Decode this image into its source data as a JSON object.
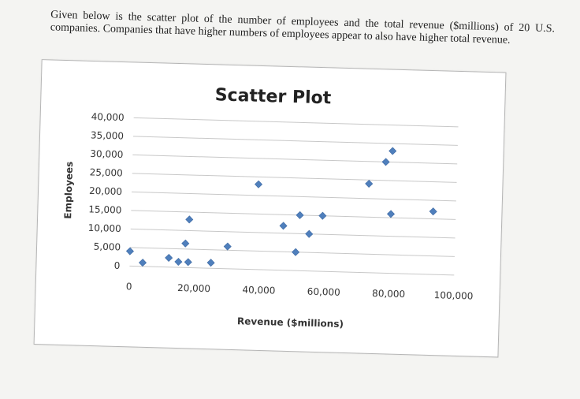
{
  "intro_text": "Given below is the scatter plot of the number of employees and the total revenue ($millions) of 20 U.S. companies. Companies that have higher numbers of employees appear to also have higher total revenue.",
  "chart_data": {
    "type": "scatter",
    "title": "Scatter Plot",
    "xlabel": "Revenue ($millions)",
    "ylabel": "Employees",
    "xlim": [
      0,
      100000
    ],
    "ylim": [
      0,
      40000
    ],
    "xticks": [
      0,
      20000,
      40000,
      60000,
      80000,
      100000
    ],
    "yticks": [
      0,
      5000,
      10000,
      15000,
      20000,
      25000,
      30000,
      35000,
      40000
    ],
    "xtick_labels": [
      "0",
      "20,000",
      "40,000",
      "60,000",
      "80,000",
      "100,000"
    ],
    "ytick_labels": [
      "0",
      "5,000",
      "10,000",
      "15,000",
      "20,000",
      "25,000",
      "30,000",
      "35,000",
      "40,000"
    ],
    "grid": "horizontal",
    "marker_color": "#4f7fbc",
    "points": [
      {
        "x": 0,
        "y": 4000
      },
      {
        "x": 4000,
        "y": 1000
      },
      {
        "x": 12000,
        "y": 2500
      },
      {
        "x": 15000,
        "y": 1500
      },
      {
        "x": 17000,
        "y": 6500
      },
      {
        "x": 18000,
        "y": 1500
      },
      {
        "x": 18000,
        "y": 13000
      },
      {
        "x": 25000,
        "y": 1500
      },
      {
        "x": 30000,
        "y": 6000
      },
      {
        "x": 39000,
        "y": 23000
      },
      {
        "x": 47000,
        "y": 12000
      },
      {
        "x": 51000,
        "y": 5000
      },
      {
        "x": 52000,
        "y": 15000
      },
      {
        "x": 55000,
        "y": 10000
      },
      {
        "x": 59000,
        "y": 15000
      },
      {
        "x": 73000,
        "y": 24000
      },
      {
        "x": 78000,
        "y": 30000
      },
      {
        "x": 80000,
        "y": 16000
      },
      {
        "x": 80000,
        "y": 33000
      },
      {
        "x": 93000,
        "y": 17000
      }
    ]
  }
}
